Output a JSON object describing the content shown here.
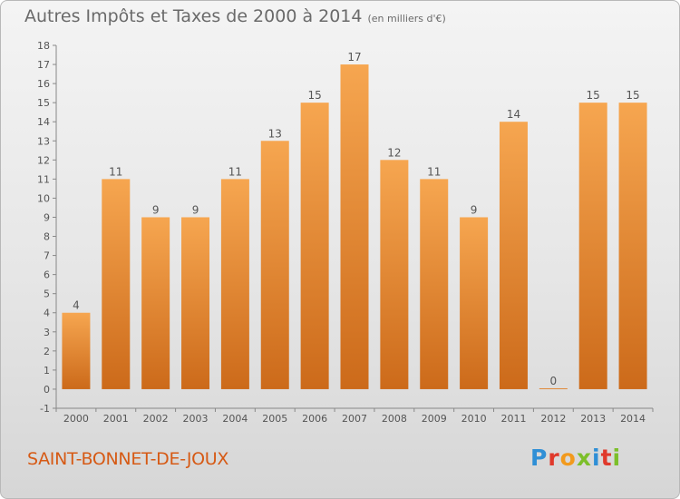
{
  "header": {
    "title": "Autres Impôts et Taxes de 2000 à 2014",
    "unit": "(en milliers d'€)"
  },
  "footer": {
    "commune": "SAINT-BONNET-DE-JOUX",
    "logo_letters": [
      {
        "ch": "P",
        "color": "#2f8fd6"
      },
      {
        "ch": "r",
        "color": "#e0392b"
      },
      {
        "ch": "o",
        "color": "#f29a1d"
      },
      {
        "ch": "x",
        "color": "#7cbf2a"
      },
      {
        "ch": "i",
        "color": "#2f8fd6"
      },
      {
        "ch": "t",
        "color": "#e0392b"
      },
      {
        "ch": "i",
        "color": "#7cbf2a"
      }
    ]
  },
  "colors": {
    "bar_top": "#f6a650",
    "bar_bottom": "#cc6a1a",
    "axis": "#888888",
    "text": "#555555"
  },
  "chart_data": {
    "type": "bar",
    "categories": [
      "2000",
      "2001",
      "2002",
      "2003",
      "2004",
      "2005",
      "2006",
      "2007",
      "2008",
      "2009",
      "2010",
      "2011",
      "2012",
      "2013",
      "2014"
    ],
    "values": [
      4,
      11,
      9,
      9,
      11,
      13,
      15,
      17,
      12,
      11,
      9,
      14,
      0,
      15,
      15
    ],
    "data_labels": [
      "4",
      "11",
      "9",
      "9",
      "11",
      "13",
      "15",
      "17",
      "12",
      "11",
      "9",
      "14",
      "0",
      "15",
      "15"
    ],
    "y_ticks": [
      -1,
      0,
      1,
      2,
      3,
      4,
      5,
      6,
      7,
      8,
      9,
      10,
      11,
      12,
      13,
      14,
      15,
      16,
      17,
      18
    ],
    "ylim": [
      -1,
      18
    ],
    "grid": false,
    "legend": "none"
  }
}
